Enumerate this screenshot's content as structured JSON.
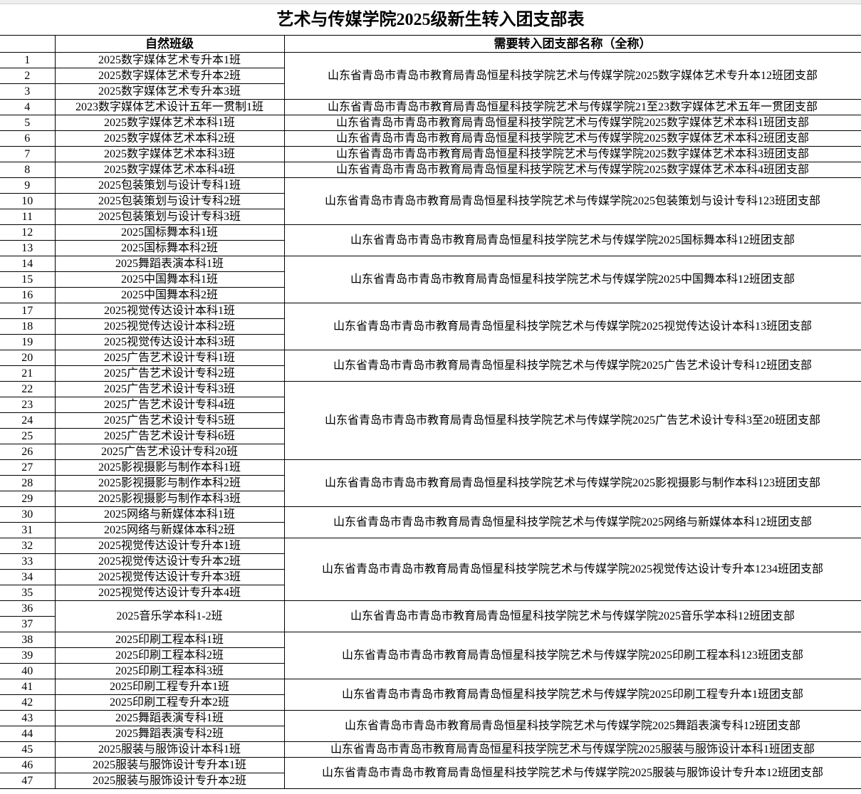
{
  "title": "艺术与传媒学院2025级新生转入团支部表",
  "headers": {
    "no": "",
    "class": "自然班级",
    "branch": "需要转入团支部名称（全称）"
  },
  "classes": [
    {
      "name": "2025数字媒体艺术专升本1班",
      "rows": 1
    },
    {
      "name": "2025数字媒体艺术专升本2班",
      "rows": 1
    },
    {
      "name": "2025数字媒体艺术专升本3班",
      "rows": 1
    },
    {
      "name": "2023数字媒体艺术设计五年一贯制1班",
      "rows": 1
    },
    {
      "name": "2025数字媒体艺术本科1班",
      "rows": 1
    },
    {
      "name": "2025数字媒体艺术本科2班",
      "rows": 1
    },
    {
      "name": "2025数字媒体艺术本科3班",
      "rows": 1
    },
    {
      "name": "2025数字媒体艺术本科4班",
      "rows": 1
    },
    {
      "name": "2025包装策划与设计专科1班",
      "rows": 1
    },
    {
      "name": "2025包装策划与设计专科2班",
      "rows": 1
    },
    {
      "name": "2025包装策划与设计专科3班",
      "rows": 1
    },
    {
      "name": "2025国标舞本科1班",
      "rows": 1
    },
    {
      "name": "2025国标舞本科2班",
      "rows": 1
    },
    {
      "name": "2025舞蹈表演本科1班",
      "rows": 1
    },
    {
      "name": "2025中国舞本科1班",
      "rows": 1
    },
    {
      "name": "2025中国舞本科2班",
      "rows": 1
    },
    {
      "name": "2025视觉传达设计本科1班",
      "rows": 1
    },
    {
      "name": "2025视觉传达设计本科2班",
      "rows": 1
    },
    {
      "name": "2025视觉传达设计本科3班",
      "rows": 1
    },
    {
      "name": "2025广告艺术设计专科1班",
      "rows": 1
    },
    {
      "name": "2025广告艺术设计专科2班",
      "rows": 1
    },
    {
      "name": "2025广告艺术设计专科3班",
      "rows": 1
    },
    {
      "name": "2025广告艺术设计专科4班",
      "rows": 1
    },
    {
      "name": "2025广告艺术设计专科5班",
      "rows": 1
    },
    {
      "name": "2025广告艺术设计专科6班",
      "rows": 1
    },
    {
      "name": "2025广告艺术设计专科20班",
      "rows": 1
    },
    {
      "name": "2025影视摄影与制作本科1班",
      "rows": 1
    },
    {
      "name": "2025影视摄影与制作本科2班",
      "rows": 1
    },
    {
      "name": "2025影视摄影与制作本科3班",
      "rows": 1
    },
    {
      "name": "2025网络与新媒体本科1班",
      "rows": 1
    },
    {
      "name": "2025网络与新媒体本科2班",
      "rows": 1
    },
    {
      "name": "2025视觉传达设计专升本1班",
      "rows": 1
    },
    {
      "name": "2025视觉传达设计专升本2班",
      "rows": 1
    },
    {
      "name": "2025视觉传达设计专升本3班",
      "rows": 1
    },
    {
      "name": "2025视觉传达设计专升本4班",
      "rows": 1
    },
    {
      "name": "2025音乐学本科1-2班",
      "rows": 2
    },
    {
      "name": "2025印刷工程本科1班",
      "rows": 1
    },
    {
      "name": "2025印刷工程本科2班",
      "rows": 1
    },
    {
      "name": "2025印刷工程本科3班",
      "rows": 1
    },
    {
      "name": "2025印刷工程专升本1班",
      "rows": 1
    },
    {
      "name": "2025印刷工程专升本2班",
      "rows": 1
    },
    {
      "name": "2025舞蹈表演专科1班",
      "rows": 1
    },
    {
      "name": "2025舞蹈表演专科2班",
      "rows": 1
    },
    {
      "name": "2025服装与服饰设计本科1班",
      "rows": 1
    },
    {
      "name": "2025服装与服饰设计专升本1班",
      "rows": 1
    },
    {
      "name": "2025服装与服饰设计专升本2班",
      "rows": 1
    }
  ],
  "branches": [
    {
      "name": "山东省青岛市青岛市教育局青岛恒星科技学院艺术与传媒学院2025数字媒体艺术专升本12班团支部",
      "rows": 3
    },
    {
      "name": "山东省青岛市青岛市教育局青岛恒星科技学院艺术与传媒学院21至23数字媒体艺术五年一贯团支部",
      "rows": 1
    },
    {
      "name": "山东省青岛市青岛市教育局青岛恒星科技学院艺术与传媒学院2025数字媒体艺术本科1班团支部",
      "rows": 1
    },
    {
      "name": "山东省青岛市青岛市教育局青岛恒星科技学院艺术与传媒学院2025数字媒体艺术本科2班团支部",
      "rows": 1
    },
    {
      "name": "山东省青岛市青岛市教育局青岛恒星科技学院艺术与传媒学院2025数字媒体艺术本科3班团支部",
      "rows": 1
    },
    {
      "name": "山东省青岛市青岛市教育局青岛恒星科技学院艺术与传媒学院2025数字媒体艺术本科4班团支部",
      "rows": 1
    },
    {
      "name": "山东省青岛市青岛市教育局青岛恒星科技学院艺术与传媒学院2025包装策划与设计专科123班团支部",
      "rows": 3
    },
    {
      "name": "山东省青岛市青岛市教育局青岛恒星科技学院艺术与传媒学院2025国标舞本科12班团支部",
      "rows": 2
    },
    {
      "name": "山东省青岛市青岛市教育局青岛恒星科技学院艺术与传媒学院2025中国舞本科12班团支部",
      "rows": 3
    },
    {
      "name": "山东省青岛市青岛市教育局青岛恒星科技学院艺术与传媒学院2025视觉传达设计本科13班团支部",
      "rows": 3
    },
    {
      "name": "山东省青岛市青岛市教育局青岛恒星科技学院艺术与传媒学院2025广告艺术设计专科12班团支部",
      "rows": 2
    },
    {
      "name": "山东省青岛市青岛市教育局青岛恒星科技学院艺术与传媒学院2025广告艺术设计专科3至20班团支部",
      "rows": 5
    },
    {
      "name": "山东省青岛市青岛市教育局青岛恒星科技学院艺术与传媒学院2025影视摄影与制作本科123班团支部",
      "rows": 3
    },
    {
      "name": "山东省青岛市青岛市教育局青岛恒星科技学院艺术与传媒学院2025网络与新媒体本科12班团支部",
      "rows": 2
    },
    {
      "name": "山东省青岛市青岛市教育局青岛恒星科技学院艺术与传媒学院2025视觉传达设计专升本1234班团支部",
      "rows": 4
    },
    {
      "name": "山东省青岛市青岛市教育局青岛恒星科技学院艺术与传媒学院2025音乐学本科12班团支部",
      "rows": 2
    },
    {
      "name": "山东省青岛市青岛市教育局青岛恒星科技学院艺术与传媒学院2025印刷工程本科123班团支部",
      "rows": 3
    },
    {
      "name": "山东省青岛市青岛市教育局青岛恒星科技学院艺术与传媒学院2025印刷工程专升本1班团支部",
      "rows": 2
    },
    {
      "name": "山东省青岛市青岛市教育局青岛恒星科技学院艺术与传媒学院2025舞蹈表演专科12班团支部",
      "rows": 2
    },
    {
      "name": "山东省青岛市青岛市教育局青岛恒星科技学院艺术与传媒学院2025服装与服饰设计本科1班团支部",
      "rows": 1
    },
    {
      "name": "山东省青岛市青岛市教育局青岛恒星科技学院艺术与传媒学院2025服装与服饰设计专升本12班团支部",
      "rows": 2
    }
  ]
}
